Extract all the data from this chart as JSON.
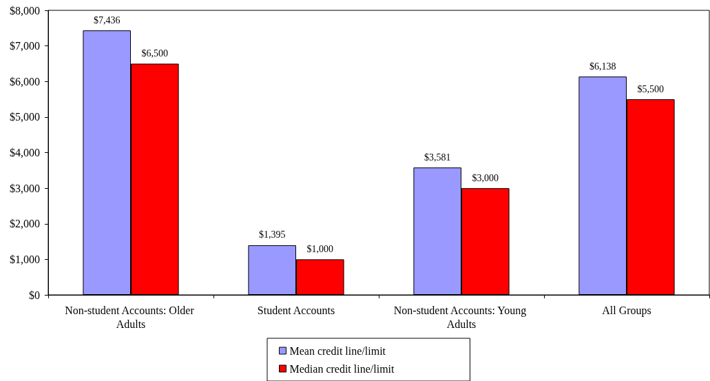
{
  "chart_data": {
    "type": "bar",
    "categories": [
      "Non-student Accounts: Older Adults",
      "Student Accounts",
      "Non-student Accounts: Young Adults",
      "All Groups"
    ],
    "series": [
      {
        "name": "Mean credit line/limit",
        "color": "#9999ff",
        "values": [
          7436,
          1395,
          3581,
          6138
        ],
        "value_labels": [
          "$7,436",
          "$1,395",
          "$3,581",
          "$6,138"
        ]
      },
      {
        "name": "Median credit line/limit",
        "color": "#ff0000",
        "values": [
          6500,
          1000,
          3000,
          5500
        ],
        "value_labels": [
          "$6,500",
          "$1,000",
          "$3,000",
          "$5,500"
        ]
      }
    ],
    "ylim": [
      0,
      8000
    ],
    "yticks": [
      {
        "value": 0,
        "label": "$0"
      },
      {
        "value": 1000,
        "label": "$1,000"
      },
      {
        "value": 2000,
        "label": "$2,000"
      },
      {
        "value": 3000,
        "label": "$3,000"
      },
      {
        "value": 4000,
        "label": "$4,000"
      },
      {
        "value": 5000,
        "label": "$5,000"
      },
      {
        "value": 6000,
        "label": "$6,000"
      },
      {
        "value": 7000,
        "label": "$7,000"
      },
      {
        "value": 8000,
        "label": "$8,000"
      }
    ],
    "grid": false,
    "legend": "bottom"
  }
}
